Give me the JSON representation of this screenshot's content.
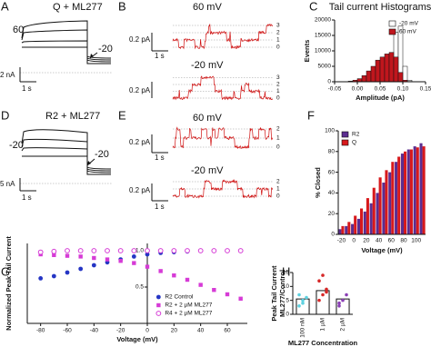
{
  "chart_data": [
    {
      "type": "histogram",
      "title": "Tail current Histograms",
      "xlabel": "Amplitude (pA)",
      "ylabel": "Events",
      "bins": [
        -0.02,
        -0.01,
        0,
        0.01,
        0.02,
        0.03,
        0.04,
        0.05,
        0.06,
        0.07,
        0.08,
        0.09,
        0.1,
        0.11,
        0.12
      ],
      "series": [
        {
          "name": "-20 mV",
          "color": "#ffffff",
          "values": [
            0,
            0,
            0,
            0,
            0,
            200,
            500,
            1000,
            3000,
            9000,
            16000,
            18000,
            5000,
            500
          ]
        },
        {
          "name": "60 mV",
          "color": "#c0161d",
          "values": [
            200,
            500,
            1000,
            2000,
            3500,
            5000,
            7000,
            8000,
            9000,
            9500,
            8000,
            3000,
            500,
            100
          ]
        }
      ],
      "xlim": [
        -0.05,
        0.15
      ],
      "xticks": [
        {
          "value": -0.05,
          "label": "-0.05"
        },
        {
          "value": 0,
          "label": "0.00"
        },
        {
          "value": 0.05,
          "label": "0.05"
        },
        {
          "value": 0.1,
          "label": "0.10"
        },
        {
          "value": 0.15,
          "label": "0.15"
        }
      ],
      "ylim": [
        0,
        20000
      ],
      "yticks": [
        0,
        5000,
        10000,
        15000,
        20000
      ],
      "legend": "upper right"
    },
    {
      "type": "bar",
      "xlabel": "Voltage (mV)",
      "ylabel": "% Closed",
      "categories": [
        -20,
        null,
        0,
        null,
        20,
        null,
        40,
        null,
        60,
        null,
        80,
        null,
        100,
        null
      ],
      "series": [
        {
          "name": "R2",
          "color": "#5b2d90",
          "values": [
            5,
            8,
            10,
            15,
            22,
            30,
            40,
            50,
            60,
            70,
            78,
            82,
            85,
            88
          ]
        },
        {
          "name": "Q",
          "color": "#d7191c",
          "values": [
            8,
            12,
            18,
            25,
            35,
            45,
            55,
            62,
            70,
            75,
            80,
            82,
            84,
            85
          ]
        }
      ],
      "ylim": [
        0,
        100
      ],
      "yticks": [
        0,
        20,
        40,
        60,
        80,
        100
      ],
      "legend": "upper left"
    },
    {
      "type": "scatter",
      "xlabel": "Voltage (mV)",
      "ylabel": "Normalized Peak Tail Current",
      "x": [
        -80,
        -70,
        -60,
        -50,
        -40,
        -30,
        -20,
        -10,
        0,
        10,
        20,
        30,
        40,
        50,
        60,
        70
      ],
      "series": [
        {
          "name": "R2 Control",
          "color": "#2535c4",
          "marker": "circle",
          "values": [
            0.62,
            0.65,
            0.7,
            0.75,
            0.8,
            0.84,
            0.88,
            0.92,
            0.95,
            0.97,
            0.98,
            0.99,
            1.0,
            1.0,
            1.0,
            1.0
          ]
        },
        {
          "name": "R2 + 2 µM ML277",
          "color": "#d63bd6",
          "marker": "square",
          "values": [
            0.95,
            0.94,
            0.93,
            0.92,
            0.9,
            0.88,
            0.86,
            0.83,
            0.78,
            0.72,
            0.66,
            0.6,
            0.53,
            0.46,
            0.4,
            0.34
          ]
        },
        {
          "name": "R4 + 2 µM ML277",
          "color": "#d63bd6",
          "marker": "open-circle",
          "values": [
            0.98,
            0.99,
            1.0,
            1.0,
            1.0,
            1.0,
            1.0,
            1.0,
            1.0,
            1.0,
            1.0,
            1.0,
            1.0,
            1.0,
            1.0,
            1.0
          ]
        }
      ],
      "xlim": [
        -90,
        75
      ],
      "xticks": [
        -80,
        -60,
        -40,
        -20,
        0,
        20,
        40,
        60
      ],
      "ylim": [
        0,
        1.1
      ],
      "yticks": [
        0.5,
        {
          "value": 1,
          "label": "1.0"
        }
      ],
      "legend": "lower right"
    },
    {
      "type": "bar",
      "xlabel": "ML277 Concentration",
      "ylabel": [
        "Peak Tail Current",
        "ML277/Control"
      ],
      "categories": [
        "100 nM",
        "1 µM",
        "2 µM"
      ],
      "values": [
        5.5,
        8.5,
        5.5
      ],
      "color": "#ffffff",
      "point_colors": [
        "#5ed1e0",
        "#d62828",
        "#8a3fb5"
      ],
      "points": [
        [
          3,
          5,
          6,
          7,
          4
        ],
        [
          5,
          7,
          9,
          12,
          14,
          8
        ],
        [
          4,
          5,
          7,
          3
        ]
      ],
      "ylim": [
        0,
        15
      ],
      "yticks": [
        0,
        5,
        10,
        15
      ]
    }
  ],
  "panels": {
    "letters": [
      "A",
      "B",
      "C",
      "D",
      "E",
      "F",
      "G",
      "H"
    ],
    "A": {
      "title": "Q + ML277",
      "hold": "60",
      "step": "-20",
      "current_scale": "2 nA",
      "time_scale": "1 s"
    },
    "B": {
      "top": "60 mV",
      "bottom": "-20 mV",
      "current_scale_top": "0.2 pA",
      "current_scale_bottom": "0.2 pA",
      "time_scale": "1 s",
      "levels_top": [
        "3",
        "2",
        "1",
        "0"
      ],
      "levels_bottom": [
        "3",
        "2",
        "1",
        "0"
      ]
    },
    "D": {
      "title": "R2 + ML277",
      "hold": "-20",
      "step": "-20",
      "current_scale": "5 nA",
      "time_scale": "1 s"
    },
    "E": {
      "top": "60 mV",
      "bottom": "-20 mV",
      "current_scale_top": "0.2 pA",
      "current_scale_bottom": "0.2 pA",
      "time_scale_top": "1 s",
      "time_scale_bottom": "1 s",
      "levels_top": [
        "2",
        "1",
        "0"
      ],
      "levels_bottom": [
        "2",
        "1",
        "0"
      ]
    }
  }
}
